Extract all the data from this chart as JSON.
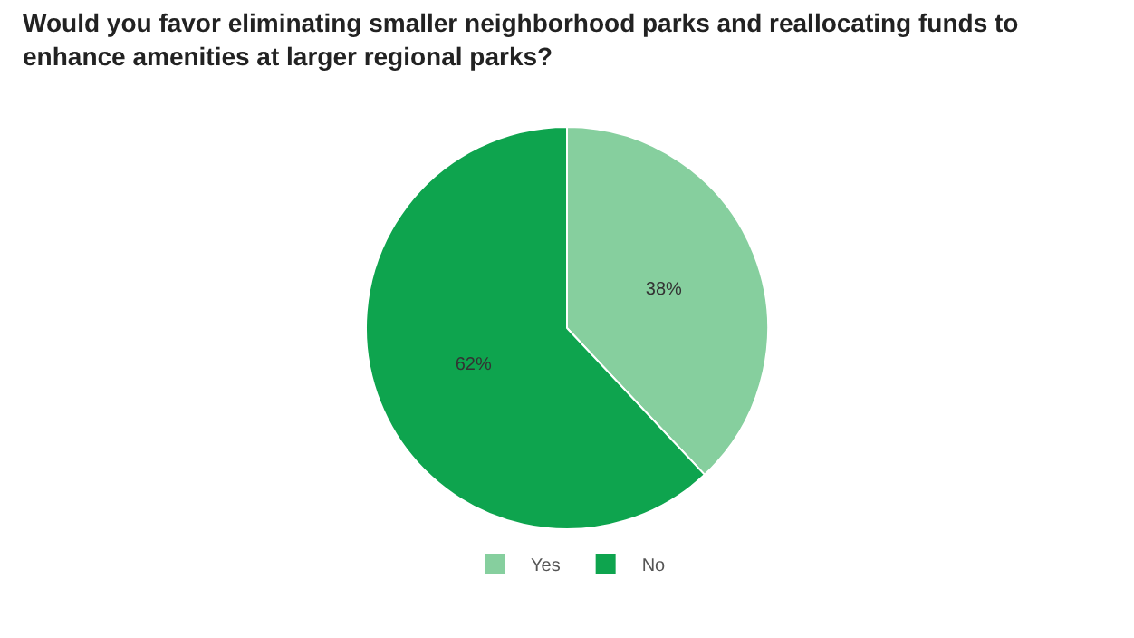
{
  "chart_data": {
    "type": "pie",
    "title": "Would you favor eliminating smaller neighborhood parks and reallocating funds to enhance amenities at larger regional parks?",
    "categories": [
      "Yes",
      "No"
    ],
    "values": [
      38,
      62
    ],
    "value_labels": [
      "38%",
      "62%"
    ],
    "colors": [
      "#86cf9e",
      "#0ea44e"
    ],
    "legend": "bottom"
  }
}
